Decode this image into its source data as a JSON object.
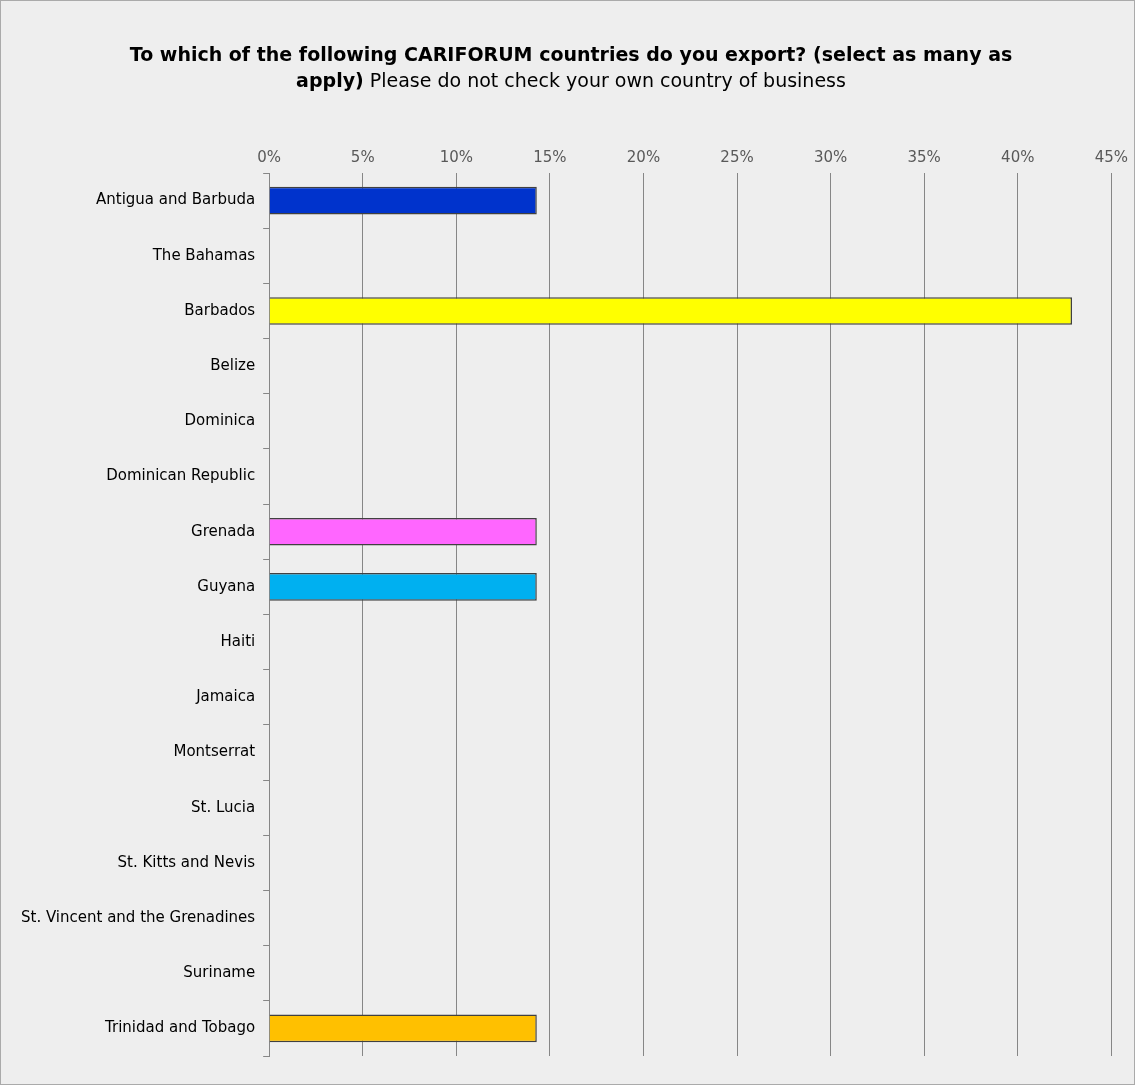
{
  "chart_data": {
    "type": "bar",
    "orientation": "horizontal",
    "title": "To which of the following CARIFORUM countries do you export?  (select as many as apply)",
    "subtitle": "Please do not check your own country of business",
    "categories": [
      "Antigua and Barbuda",
      "The Bahamas",
      "Barbados",
      "Belize",
      "Dominica",
      "Dominican Republic",
      "Grenada",
      "Guyana",
      "Haiti",
      "Jamaica",
      "Montserrat",
      "St. Lucia",
      "St. Kitts and Nevis",
      "St. Vincent and the Grenadines",
      "Suriname",
      "Trinidad and Tobago"
    ],
    "values": [
      14.3,
      0,
      42.9,
      0,
      0,
      0,
      14.3,
      14.3,
      0,
      0,
      0,
      0,
      0,
      0,
      0,
      14.3
    ],
    "colors": [
      "#0033cc",
      null,
      "#ffff00",
      null,
      null,
      null,
      "#ff66ff",
      "#00b0f0",
      null,
      null,
      null,
      null,
      null,
      null,
      null,
      "#ffc000"
    ],
    "xlim": [
      0,
      45
    ],
    "xticks": [
      {
        "value": 0,
        "label": "0%"
      },
      {
        "value": 5,
        "label": "5%"
      },
      {
        "value": 10,
        "label": "10%"
      },
      {
        "value": 15,
        "label": "15%"
      },
      {
        "value": 20,
        "label": "20%"
      },
      {
        "value": 25,
        "label": "25%"
      },
      {
        "value": 30,
        "label": "30%"
      },
      {
        "value": 35,
        "label": "35%"
      },
      {
        "value": 40,
        "label": "40%"
      },
      {
        "value": 45,
        "label": "45%"
      }
    ],
    "grid": "x"
  }
}
